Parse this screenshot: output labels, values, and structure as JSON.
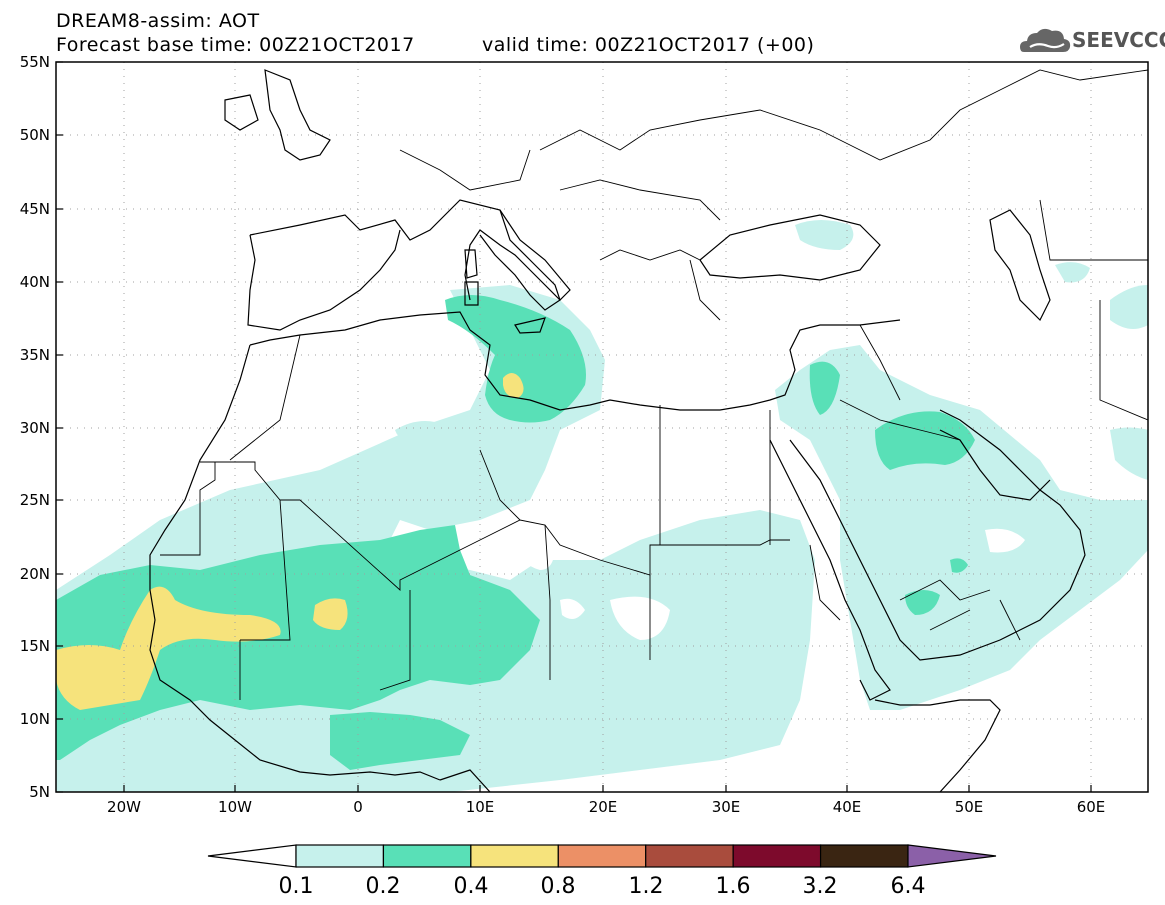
{
  "header": {
    "title": "DREAM8-assim: AOT",
    "base_time": "Forecast base time: 00Z21OCT2017",
    "valid_time": "valid time: 00Z21OCT2017 (+00)",
    "logo_text": "SEEVCCC"
  },
  "map": {
    "lat_labels": [
      "55N",
      "50N",
      "45N",
      "40N",
      "35N",
      "30N",
      "25N",
      "20N",
      "15N",
      "10N",
      "5N"
    ],
    "lon_labels": [
      "20W",
      "10W",
      "0",
      "10E",
      "20E",
      "30E",
      "40E",
      "50E",
      "60E"
    ],
    "colors": {
      "c01": "#c6f1ec",
      "c02": "#59e0b7",
      "c04": "#f6e37c",
      "frame": "#000000",
      "grid": "#a0a0a0"
    }
  },
  "colorbar": {
    "labels": [
      "0.1",
      "0.2",
      "0.4",
      "0.8",
      "1.2",
      "1.6",
      "3.2",
      "6.4"
    ],
    "colors": [
      "#c6f1ec",
      "#59e0b7",
      "#f6e37c",
      "#ec9066",
      "#a94c3d",
      "#7d0a2c",
      "#3a2512"
    ],
    "over_color": "#8b60a8"
  }
}
